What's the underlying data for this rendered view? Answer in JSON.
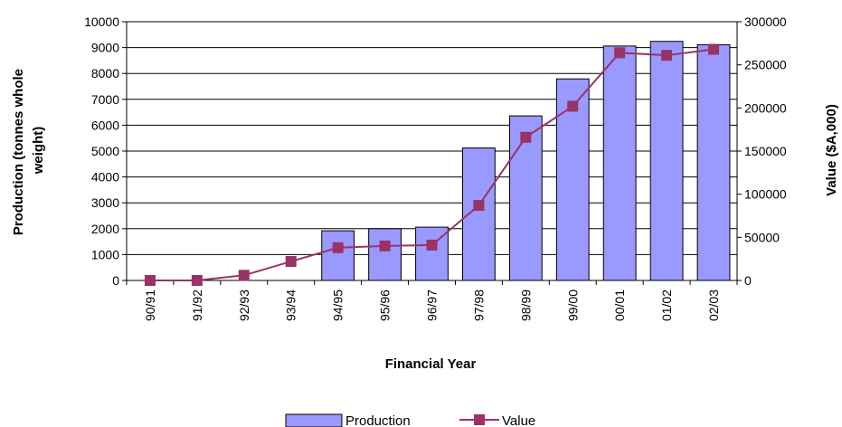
{
  "chart_data": {
    "type": "bar",
    "categories": [
      "90/91",
      "91/92",
      "92/93",
      "93/94",
      "94/95",
      "95/96",
      "96/97",
      "97/98",
      "98/99",
      "99/00",
      "00/01",
      "01/02",
      "02/03"
    ],
    "series": [
      {
        "name": "Production",
        "type": "bar",
        "axis": "left",
        "values": [
          0,
          0,
          0,
          0,
          1920,
          2000,
          2060,
          5120,
          6360,
          7790,
          9060,
          9240,
          9110
        ]
      },
      {
        "name": "Value",
        "type": "line",
        "axis": "right",
        "values": [
          0,
          0,
          6000,
          22000,
          38000,
          40000,
          41000,
          87000,
          166000,
          202000,
          264000,
          261000,
          268000
        ]
      }
    ],
    "xlabel": "Financial Year",
    "ylabel_lines": [
      "Production (tonnes whole",
      "weight)"
    ],
    "y2label": "Value ($A,000)",
    "ylim": [
      0,
      10000
    ],
    "y_ticks": [
      "0",
      "1000",
      "2000",
      "3000",
      "4000",
      "5000",
      "6000",
      "7000",
      "8000",
      "9000",
      "10000"
    ],
    "y2lim": [
      0,
      300000
    ],
    "y2_ticks": [
      "0",
      "50000",
      "100000",
      "150000",
      "200000",
      "250000",
      "300000"
    ],
    "grid": true,
    "legend": "bottom-center",
    "colors": {
      "bar_fill": "#9999ff",
      "bar_stroke": "#000000",
      "line": "#993366",
      "marker": "#993366",
      "grid": "#000000"
    }
  }
}
